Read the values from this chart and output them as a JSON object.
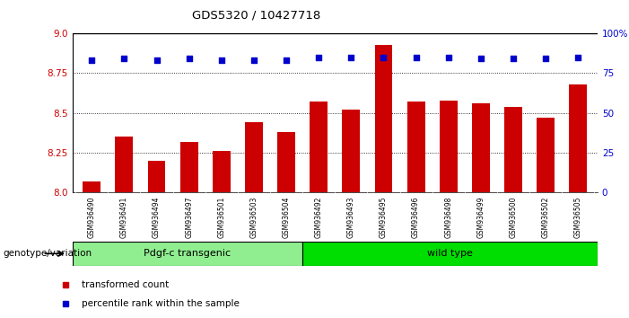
{
  "title": "GDS5320 / 10427718",
  "categories": [
    "GSM936490",
    "GSM936491",
    "GSM936494",
    "GSM936497",
    "GSM936501",
    "GSM936503",
    "GSM936504",
    "GSM936492",
    "GSM936493",
    "GSM936495",
    "GSM936496",
    "GSM936498",
    "GSM936499",
    "GSM936500",
    "GSM936502",
    "GSM936505"
  ],
  "bar_values": [
    8.07,
    8.35,
    8.2,
    8.32,
    8.26,
    8.44,
    8.38,
    8.57,
    8.52,
    8.93,
    8.57,
    8.58,
    8.56,
    8.54,
    8.47,
    8.68
  ],
  "percentile_values": [
    83,
    84,
    83,
    84,
    83,
    83,
    83,
    85,
    85,
    85,
    85,
    85,
    84,
    84,
    84,
    85
  ],
  "bar_color": "#cc0000",
  "dot_color": "#0000cc",
  "ylim_left": [
    8.0,
    9.0
  ],
  "ylim_right": [
    0,
    100
  ],
  "yticks_left": [
    8.0,
    8.25,
    8.5,
    8.75,
    9.0
  ],
  "yticks_right": [
    0,
    25,
    50,
    75,
    100
  ],
  "grid_values": [
    8.25,
    8.5,
    8.75
  ],
  "group1_label": "Pdgf-c transgenic",
  "group1_count": 7,
  "group2_label": "wild type",
  "group1_color": "#90ee90",
  "group2_color": "#00dd00",
  "group_label": "genotype/variation",
  "legend_bar": "transformed count",
  "legend_dot": "percentile rank within the sample",
  "tick_area_color": "#cccccc"
}
